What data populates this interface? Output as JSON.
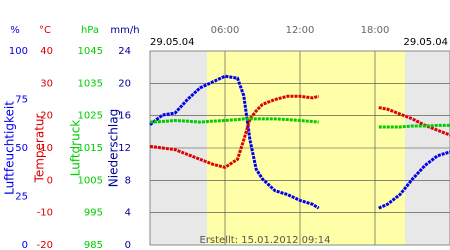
{
  "chart_data": {
    "type": "line",
    "annotation": "Erstellt: 15.01.2012 09:14",
    "date_left": "29.05.04",
    "date_right": "29.05.04",
    "xlim": [
      0,
      24
    ],
    "xticks": [
      {
        "value": 6,
        "label": "06:00"
      },
      {
        "value": 12,
        "label": "12:00"
      },
      {
        "value": 18,
        "label": "18:00"
      }
    ],
    "daylight": [
      4.56,
      20.4
    ],
    "grid": true,
    "axes": [
      {
        "unit": "%",
        "label": "Luftfeuchtigkeit",
        "color": "#0000ee",
        "ylim": [
          0,
          100
        ],
        "yticks": [
          0,
          25,
          50,
          75,
          100
        ]
      },
      {
        "unit": "°C",
        "label": "Temperatur",
        "color": "#dd0000",
        "ylim": [
          -20,
          40
        ],
        "yticks": [
          -20,
          -10,
          0,
          10,
          20,
          30,
          40
        ]
      },
      {
        "unit": "hPa",
        "label": "Luftdruck",
        "color": "#00cc00",
        "ylim": [
          985,
          1045
        ],
        "yticks": [
          985,
          995,
          1005,
          1015,
          1025,
          1035,
          1045
        ]
      },
      {
        "unit": "mm/h",
        "label": "Niederschlag",
        "color": "#000099",
        "ylim": [
          0,
          24
        ],
        "yticks": [
          0,
          4,
          8,
          12,
          16,
          20,
          24
        ]
      }
    ],
    "x": [
      0,
      1,
      2,
      3,
      4,
      5,
      6,
      7,
      7.5,
      8,
      8.5,
      9,
      10,
      11,
      12,
      13,
      13.5,
      16,
      18.3,
      19,
      20,
      21,
      22,
      23,
      24
    ],
    "series": [
      {
        "axis": 0,
        "color": "#0000ee",
        "values": [
          62,
          67,
          68,
          75,
          81,
          84,
          87,
          86,
          77,
          54,
          39,
          34,
          28,
          26,
          23,
          21,
          19,
          null,
          19,
          21,
          26,
          34,
          41,
          46,
          48
        ]
      },
      {
        "axis": 1,
        "color": "#dd0000",
        "values": [
          10.5,
          10,
          9.5,
          8,
          6.5,
          5,
          4,
          6.5,
          12.5,
          19,
          21.5,
          23.5,
          25,
          26,
          26,
          25.5,
          26,
          null,
          22.5,
          22,
          20.5,
          19,
          17,
          15.5,
          14
        ]
      },
      {
        "axis": 2,
        "color": "#00cc00",
        "values": [
          1023,
          1023.2,
          1023.5,
          1023.3,
          1023,
          1023.3,
          1023.5,
          1023.8,
          1024,
          1024,
          1024,
          1024,
          1024,
          1023.8,
          1023.5,
          1023.2,
          1023,
          null,
          1021.5,
          1021.5,
          1021.5,
          1021.8,
          1021.8,
          1022,
          1022
        ]
      }
    ]
  }
}
